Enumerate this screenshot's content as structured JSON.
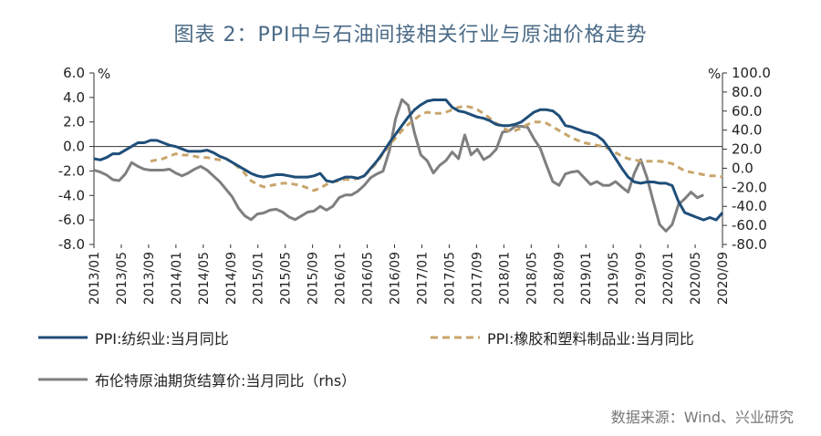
{
  "title": "图表 2：PPI中与石油间接相关行业与原油价格走势",
  "source": "数据来源：Wind、兴业研究",
  "chart_data": {
    "type": "line",
    "left_axis": {
      "unit": "%",
      "ticks": [
        6.0,
        4.0,
        2.0,
        0.0,
        -2.0,
        -4.0,
        -6.0,
        -8.0
      ],
      "ylim": [
        -8,
        6
      ]
    },
    "right_axis": {
      "unit": "%",
      "ticks": [
        100.0,
        80.0,
        60.0,
        40.0,
        20.0,
        0.0,
        -20.0,
        -40.0,
        -60.0,
        -80.0
      ],
      "ylim": [
        -80,
        100
      ]
    },
    "x_ticks": [
      "2013/01",
      "2013/05",
      "2013/09",
      "2014/01",
      "2014/05",
      "2014/09",
      "2015/01",
      "2015/05",
      "2015/09",
      "2016/01",
      "2016/05",
      "2016/09",
      "2017/01",
      "2017/05",
      "2017/09",
      "2018/01",
      "2018/05",
      "2018/09",
      "2019/01",
      "2019/05",
      "2019/09",
      "2020/01",
      "2020/05",
      "2020/09"
    ],
    "series": [
      {
        "name": "PPI:纺织业:当月同比",
        "axis": "left",
        "color": "#1f4e79",
        "style": "solid",
        "values": [
          -1.0,
          -1.1,
          -0.9,
          -0.6,
          -0.6,
          -0.3,
          0.0,
          0.3,
          0.3,
          0.5,
          0.5,
          0.3,
          0.1,
          0.0,
          -0.2,
          -0.4,
          -0.4,
          -0.4,
          -0.3,
          -0.5,
          -0.8,
          -1.0,
          -1.3,
          -1.6,
          -1.9,
          -2.2,
          -2.4,
          -2.5,
          -2.4,
          -2.3,
          -2.3,
          -2.4,
          -2.5,
          -2.5,
          -2.5,
          -2.4,
          -2.2,
          -2.8,
          -2.9,
          -2.7,
          -2.5,
          -2.5,
          -2.6,
          -2.4,
          -1.8,
          -1.2,
          -0.5,
          0.3,
          1.0,
          1.7,
          2.4,
          3.0,
          3.4,
          3.7,
          3.8,
          3.8,
          3.8,
          3.2,
          2.9,
          2.8,
          2.6,
          2.4,
          2.3,
          2.1,
          1.8,
          1.7,
          1.7,
          1.8,
          2.0,
          2.4,
          2.8,
          3.0,
          3.0,
          2.9,
          2.5,
          1.7,
          1.6,
          1.4,
          1.2,
          1.1,
          0.9,
          0.5,
          -0.2,
          -1.0,
          -1.8,
          -2.5,
          -2.9,
          -3.0,
          -2.9,
          -2.9,
          -3.0,
          -3.0,
          -3.2,
          -4.5,
          -5.4,
          -5.6,
          -5.8,
          -6.0,
          -5.8,
          -6.0,
          -5.4
        ]
      },
      {
        "name": "PPI:橡胶和塑料制品业:当月同比",
        "axis": "left",
        "color": "#c9a56c",
        "style": "dashed",
        "values": [
          null,
          null,
          null,
          null,
          null,
          null,
          null,
          null,
          null,
          -1.2,
          -1.1,
          -1.0,
          -0.8,
          -0.6,
          -0.7,
          -0.7,
          -0.8,
          -0.9,
          -0.9,
          -1.0,
          -1.1,
          -1.0,
          -1.3,
          -1.7,
          -2.2,
          -2.8,
          -3.1,
          -3.3,
          -3.2,
          -3.1,
          -3.0,
          -3.0,
          -3.1,
          -3.2,
          -3.4,
          -3.6,
          -3.4,
          -3.1,
          -2.9,
          -2.8,
          -2.7,
          -2.7,
          -2.6,
          -2.4,
          -1.9,
          -1.3,
          -0.6,
          0.1,
          0.7,
          1.3,
          1.8,
          2.2,
          2.6,
          2.8,
          2.7,
          2.7,
          2.8,
          3.0,
          3.2,
          3.3,
          3.2,
          3.0,
          2.7,
          2.3,
          1.9,
          1.5,
          1.3,
          1.3,
          1.5,
          1.8,
          2.0,
          2.0,
          1.9,
          1.6,
          1.3,
          1.0,
          0.7,
          0.5,
          0.3,
          0.2,
          0.1,
          0.0,
          -0.2,
          -0.5,
          -0.8,
          -1.0,
          -1.1,
          -1.2,
          -1.2,
          -1.2,
          -1.2,
          -1.3,
          -1.4,
          -1.7,
          -2.0,
          -2.1,
          -2.2,
          -2.3,
          -2.4,
          -2.4,
          -2.5
        ]
      },
      {
        "name": "布伦特原油期货结算价:当月同比（rhs）",
        "axis": "right",
        "color": "#7f7f7f",
        "style": "solid",
        "values": [
          -2,
          -4,
          -7,
          -12,
          -13,
          -6,
          6,
          2,
          -1,
          -2,
          -2,
          -2,
          -1,
          -5,
          -8,
          -5,
          -1,
          2,
          -2,
          -8,
          -14,
          -22,
          -30,
          -42,
          -50,
          -54,
          -48,
          -47,
          -44,
          -43,
          -46,
          -51,
          -54,
          -50,
          -46,
          -45,
          -40,
          -44,
          -40,
          -31,
          -28,
          -28,
          -24,
          -18,
          -10,
          -6,
          -3,
          18,
          52,
          72,
          66,
          37,
          14,
          8,
          -5,
          3,
          8,
          17,
          10,
          35,
          14,
          20,
          9,
          13,
          20,
          38,
          39,
          44,
          44,
          43,
          31,
          21,
          3,
          -14,
          -18,
          -6,
          -4,
          -3,
          -10,
          -17,
          -14,
          -18,
          -18,
          -14,
          -20,
          -25,
          -5,
          9,
          -10,
          -35,
          -59,
          -66,
          -59,
          -38,
          -32,
          -25,
          -31,
          -28
        ]
      }
    ],
    "legend": [
      "PPI:纺织业:当月同比",
      "PPI:橡胶和塑料制品业:当月同比",
      "布伦特原油期货结算价:当月同比（rhs）"
    ]
  }
}
